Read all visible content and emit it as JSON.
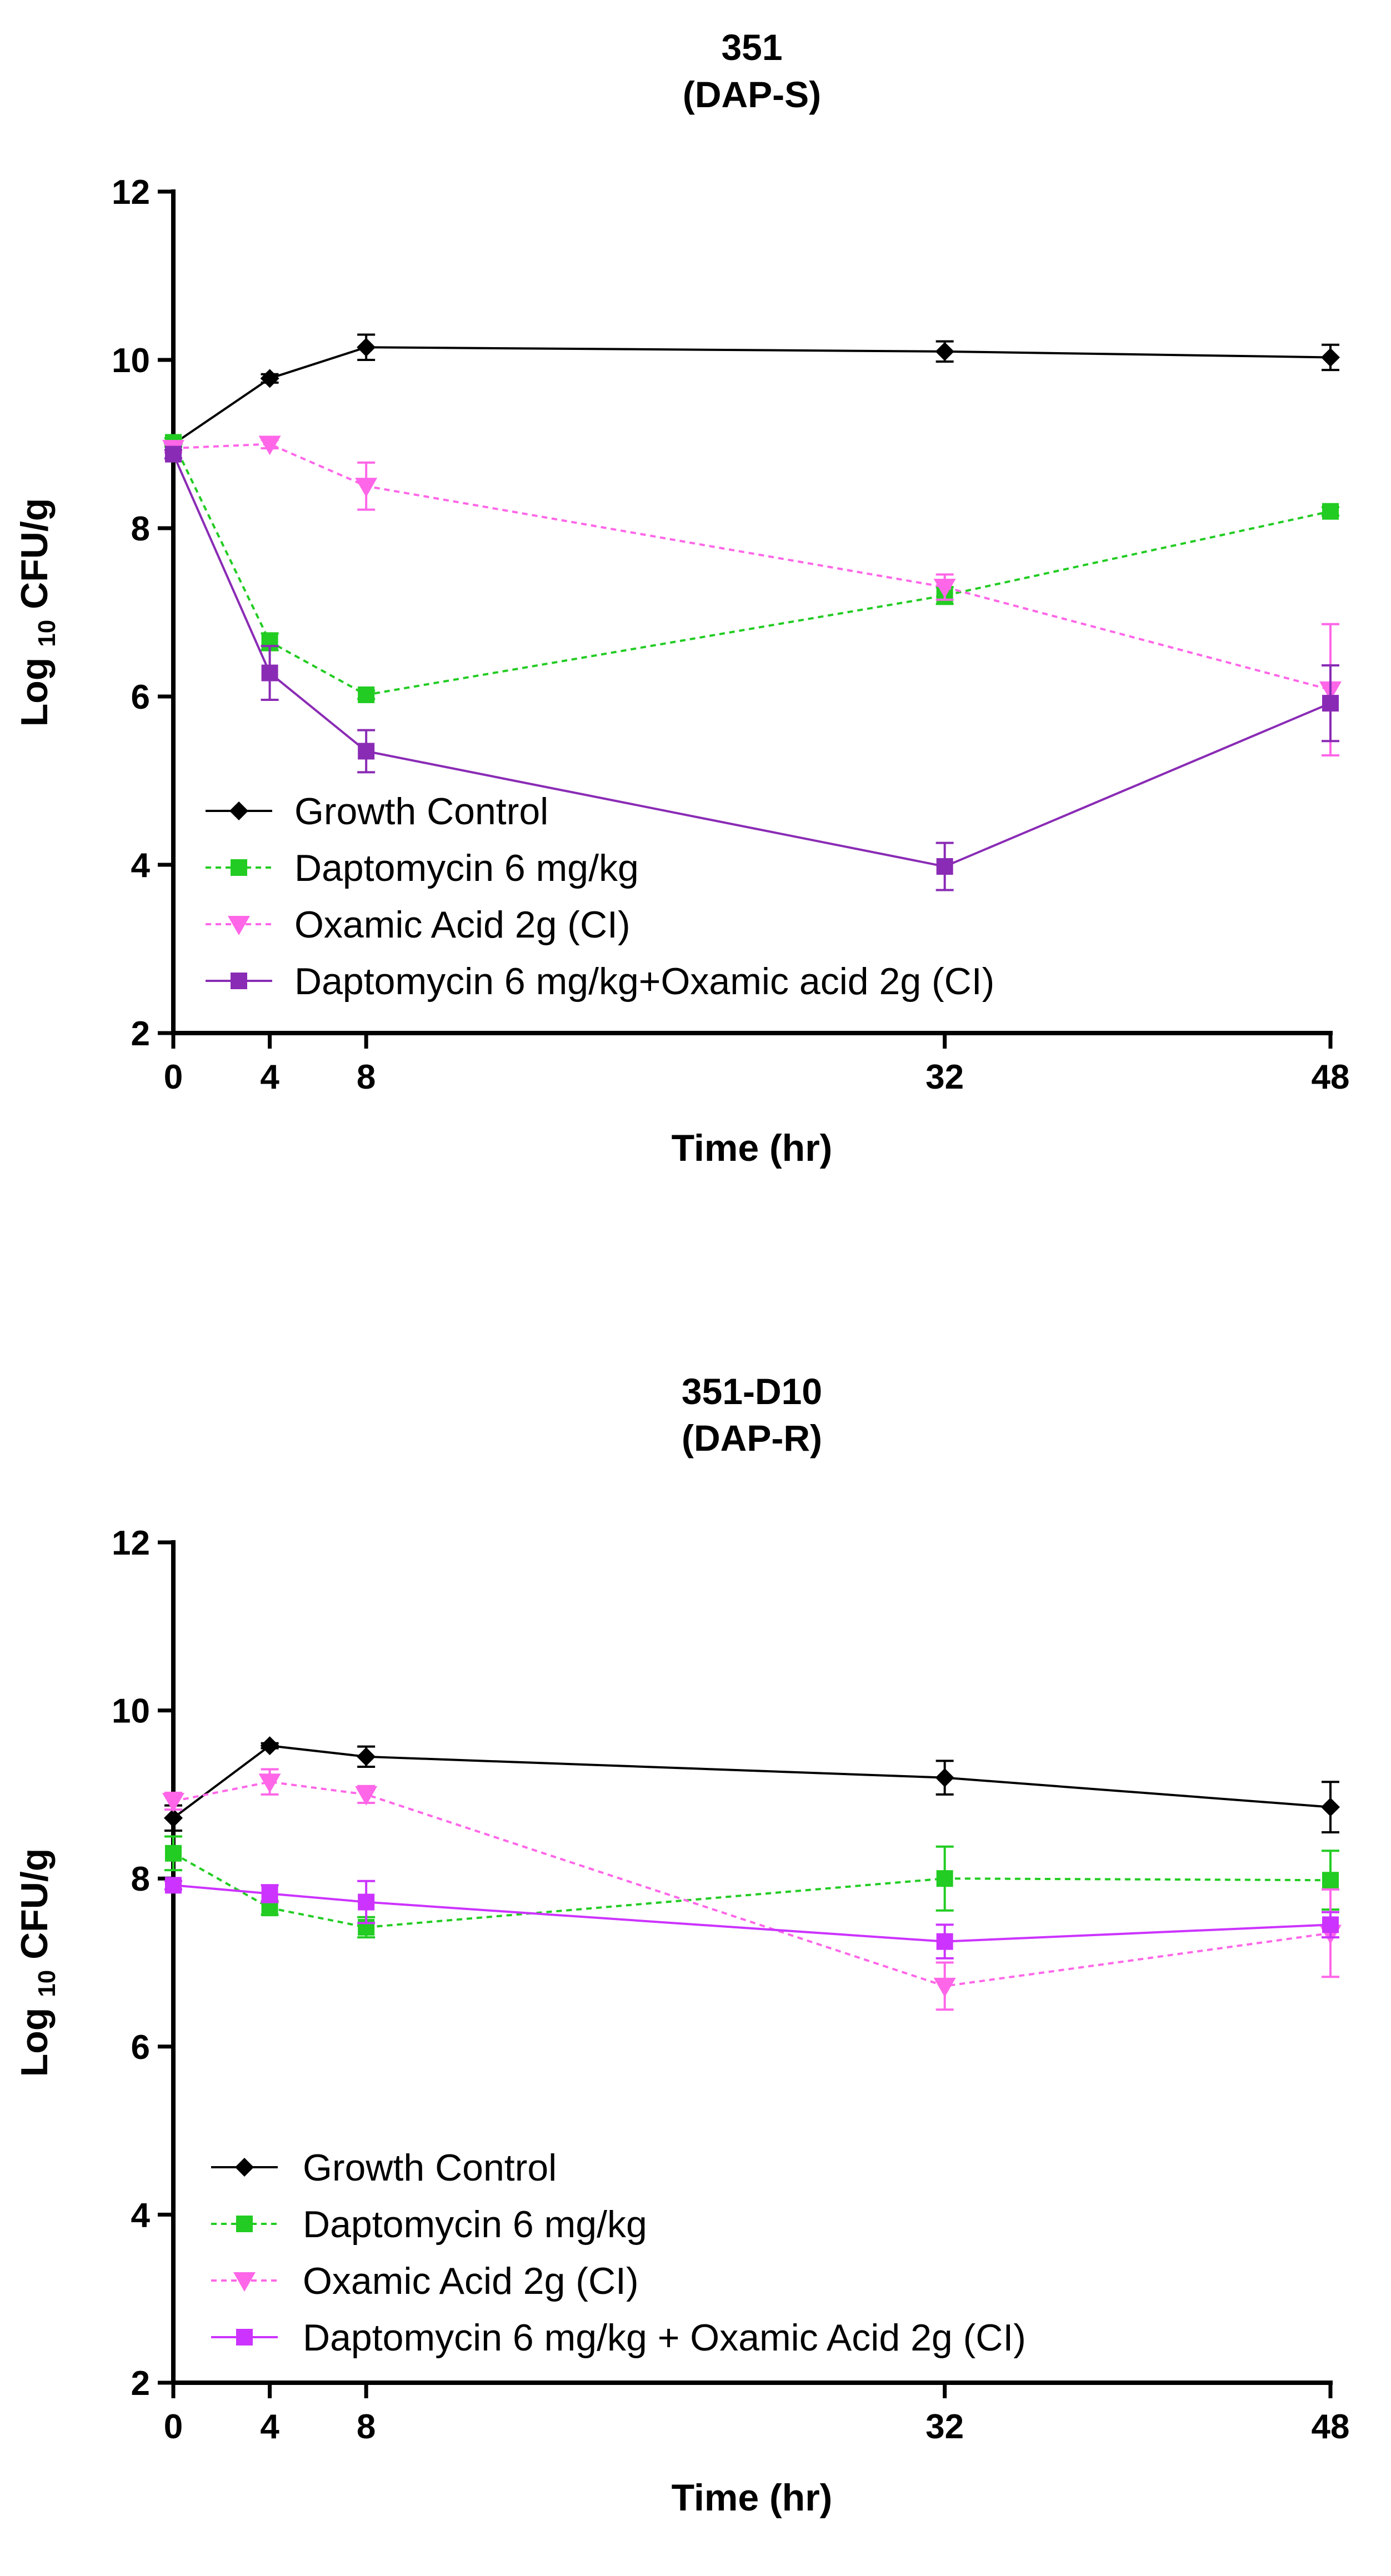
{
  "chart_data": [
    {
      "type": "line",
      "title": "351",
      "subtitle": "(DAP-S)",
      "xlabel": "Time (hr)",
      "ylabel_prefix": "Log",
      "ylabel_subscript": "10",
      "ylabel_suffix": "CFU/g",
      "x": [
        0,
        4,
        8,
        32,
        48
      ],
      "xticks": [
        "0",
        "4",
        "8",
        "32",
        "48"
      ],
      "xlim": [
        0,
        48
      ],
      "ylim": [
        2,
        12
      ],
      "yticks": [
        "2",
        "4",
        "6",
        "8",
        "10",
        "12"
      ],
      "legend_position": "bottom-left",
      "series": [
        {
          "name": "Growth Control",
          "color": "#000000",
          "marker": "diamond",
          "dash": "solid",
          "values": [
            9.0,
            9.78,
            10.15,
            10.1,
            10.03
          ],
          "err": [
            0.03,
            0.05,
            0.15,
            0.12,
            0.15
          ]
        },
        {
          "name": "Daptomycin 6 mg/kg",
          "color": "#22cc22",
          "marker": "square",
          "dash": "dotted",
          "values": [
            9.02,
            6.65,
            6.02,
            7.2,
            8.2
          ],
          "err": [
            0.05,
            0.1,
            0.05,
            0.1,
            0.05
          ]
        },
        {
          "name": "Oxamic Acid 2g (CI)",
          "color": "#ff66e8",
          "marker": "triangle-down",
          "dash": "dotted",
          "values": [
            8.95,
            9.0,
            8.5,
            7.3,
            6.08
          ],
          "err": [
            0.05,
            0.05,
            0.28,
            0.15,
            0.78
          ]
        },
        {
          "name": "Daptomycin 6 mg/kg+Oxamic acid 2g (CI)",
          "color": "#8a2bb5",
          "marker": "square",
          "dash": "solid",
          "values": [
            8.88,
            6.28,
            5.35,
            3.98,
            5.92
          ],
          "err": [
            0.05,
            0.32,
            0.25,
            0.28,
            0.45
          ]
        }
      ]
    },
    {
      "type": "line",
      "title": "351-D10",
      "subtitle": "(DAP-R)",
      "xlabel": "Time (hr)",
      "ylabel_prefix": "Log",
      "ylabel_subscript": "10",
      "ylabel_suffix": "CFU/g",
      "x": [
        0,
        4,
        8,
        32,
        48
      ],
      "xticks": [
        "0",
        "4",
        "8",
        "32",
        "48"
      ],
      "xlim": [
        0,
        48
      ],
      "ylim": [
        2,
        12
      ],
      "yticks": [
        "2",
        "4",
        "6",
        "8",
        "10",
        "12"
      ],
      "legend_position": "bottom-left",
      "series": [
        {
          "name": "Growth Control",
          "color": "#000000",
          "marker": "diamond",
          "dash": "solid",
          "values": [
            8.72,
            9.58,
            9.45,
            9.2,
            8.85
          ],
          "err": [
            0.15,
            0.03,
            0.12,
            0.2,
            0.3
          ]
        },
        {
          "name": "Daptomycin 6 mg/kg",
          "color": "#22cc22",
          "marker": "square",
          "dash": "dotted",
          "values": [
            8.3,
            7.65,
            7.42,
            8.0,
            7.98
          ],
          "err": [
            0.2,
            0.08,
            0.12,
            0.38,
            0.35
          ]
        },
        {
          "name": "Oxamic Acid 2g (CI)",
          "color": "#ff66e8",
          "marker": "triangle-down",
          "dash": "dotted",
          "values": [
            8.92,
            9.15,
            9.0,
            6.72,
            7.35
          ],
          "err": [
            0.1,
            0.15,
            0.1,
            0.28,
            0.52
          ]
        },
        {
          "name": "Daptomycin 6 mg/kg + Oxamic Acid 2g (CI)",
          "color": "#cc33ff",
          "marker": "square",
          "dash": "solid",
          "values": [
            7.92,
            7.82,
            7.72,
            7.25,
            7.45
          ],
          "err": [
            0.05,
            0.1,
            0.25,
            0.2,
            0.15
          ]
        }
      ]
    }
  ]
}
